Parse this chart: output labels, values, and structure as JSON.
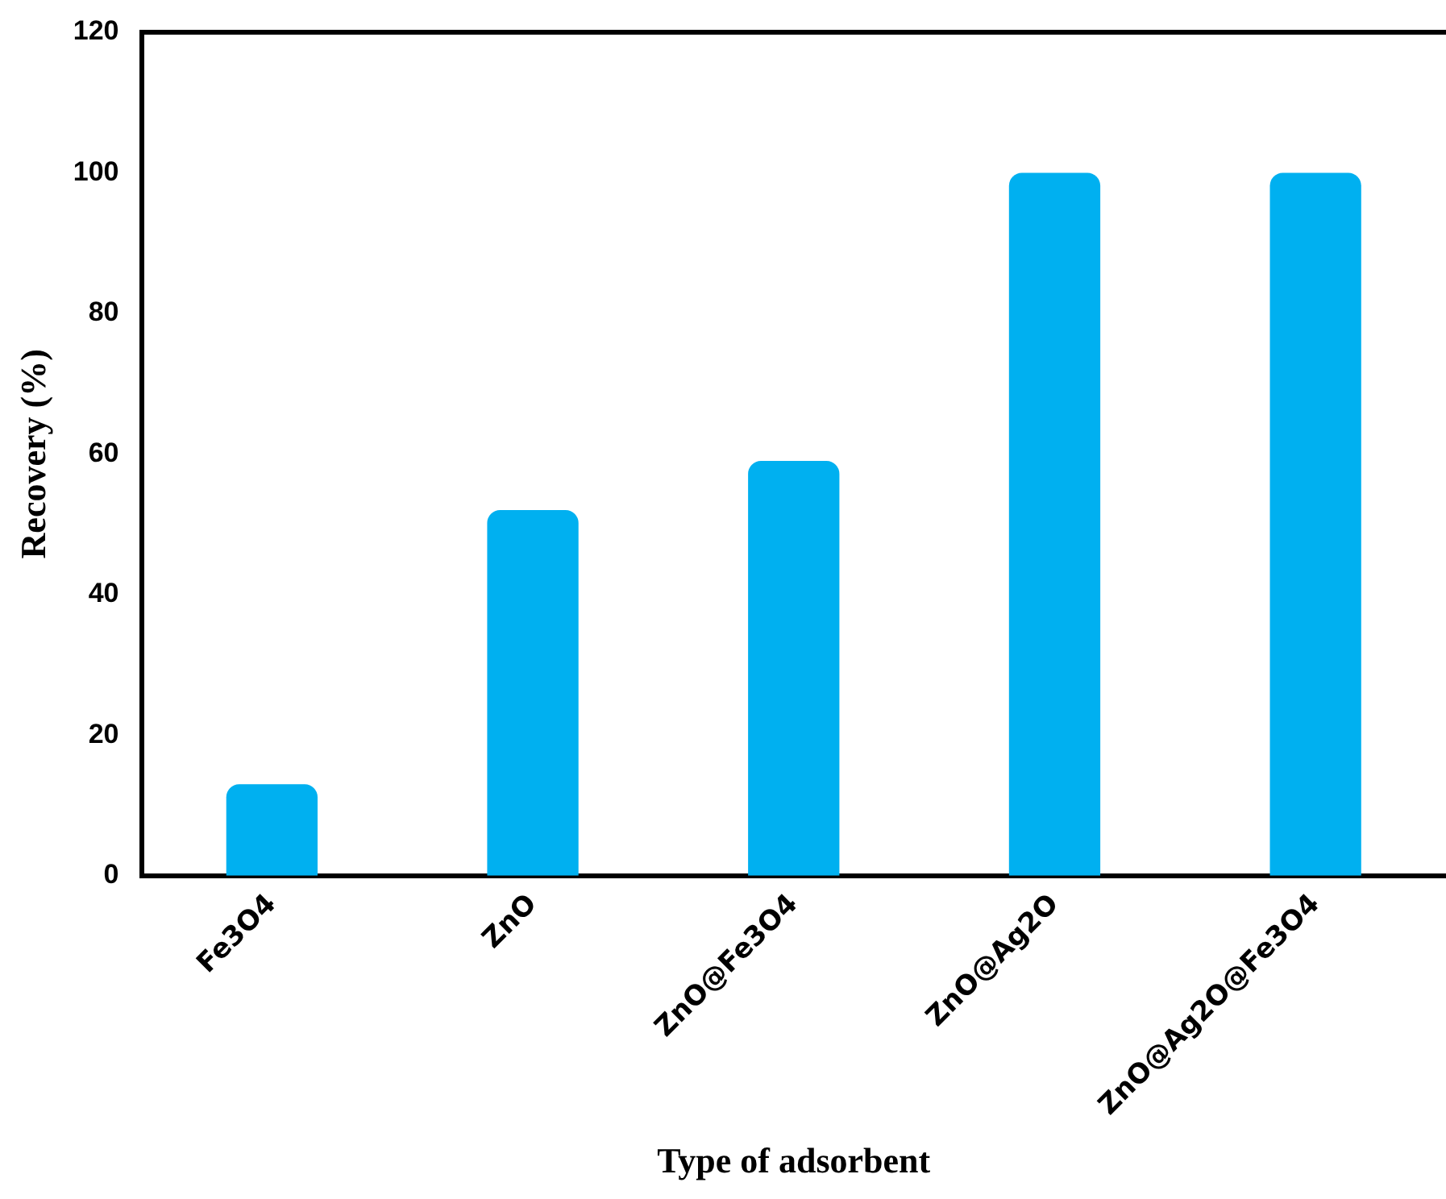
{
  "chart_data": {
    "type": "bar",
    "xlabel": "Type of adsorbent",
    "ylabel": "Recovery (%)",
    "categories": [
      "Fe3O4",
      "ZnO",
      "ZnO@Fe3O4",
      "ZnO@Ag2O",
      "ZnO@Ag2O@Fe3O4"
    ],
    "values": [
      13,
      52,
      59,
      100,
      100
    ],
    "color": "#00b0f0",
    "ylim": [
      0,
      120
    ],
    "yticks": [
      0,
      20,
      40,
      60,
      80,
      100,
      120
    ],
    "grid": false
  }
}
